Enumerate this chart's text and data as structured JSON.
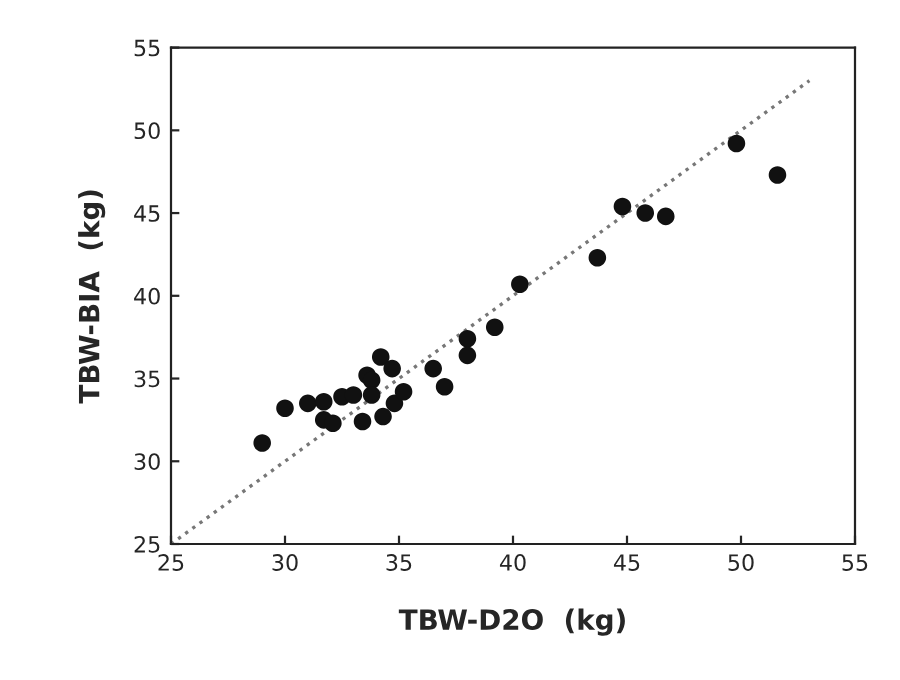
{
  "chart_data": {
    "type": "scatter",
    "xlabel": "TBW-D2O  (kg)",
    "ylabel": "TBW-BIA  (kg)",
    "xlim": [
      25,
      55
    ],
    "ylim": [
      25,
      55
    ],
    "xticks": [
      25,
      30,
      35,
      40,
      45,
      50,
      55
    ],
    "yticks": [
      25,
      30,
      35,
      40,
      45,
      50,
      55
    ],
    "grid": false,
    "series": [
      {
        "color": "#111111",
        "marker": "circle",
        "x": [
          29,
          30,
          31,
          31.7,
          31.7,
          32.1,
          32.5,
          33,
          33.6,
          33.8,
          34.2,
          34.7,
          33.8,
          33.4,
          34.3,
          34.8,
          35.2,
          36.5,
          37,
          38,
          38,
          39.2,
          40.3,
          43.7,
          44.8,
          45.8,
          46.7,
          49.8,
          51.6
        ],
        "values": [
          31.1,
          33.2,
          33.5,
          33.6,
          32.5,
          32.3,
          33.9,
          34,
          35.2,
          34.9,
          36.3,
          35.6,
          34,
          32.4,
          32.7,
          33.5,
          34.2,
          35.6,
          34.5,
          37.4,
          36.4,
          38.1,
          40.7,
          42.3,
          45.4,
          45,
          44.8,
          49.2,
          47.3
        ]
      },
      {
        "type": "line",
        "color": "#777777",
        "line_style": "dotted",
        "marker": "none",
        "x": [
          25,
          53
        ],
        "values": [
          25,
          53
        ]
      }
    ]
  }
}
